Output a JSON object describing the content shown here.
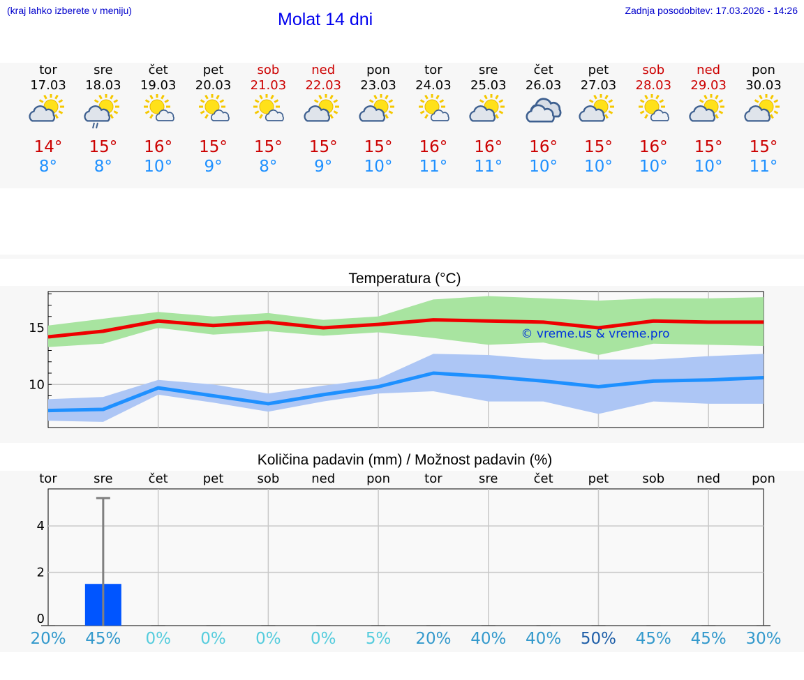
{
  "header": {
    "note": "(kraj lahko izberete v meniju)",
    "title": "Molat 14 dni",
    "updated_label": "Zadnja posodobitev:",
    "updated_value": "17.03.2026 - 14:26"
  },
  "days": [
    {
      "name": "tor",
      "date": "17.03",
      "weekend": false,
      "icon": "sun-cloud-icon",
      "tmax": "14°",
      "tmin": "8°"
    },
    {
      "name": "sre",
      "date": "18.03",
      "weekend": false,
      "icon": "sun-cloud-rain-icon",
      "tmax": "15°",
      "tmin": "8°"
    },
    {
      "name": "čet",
      "date": "19.03",
      "weekend": false,
      "icon": "sun-small-cloud-icon",
      "tmax": "16°",
      "tmin": "10°"
    },
    {
      "name": "pet",
      "date": "20.03",
      "weekend": false,
      "icon": "sun-small-cloud-icon",
      "tmax": "15°",
      "tmin": "9°"
    },
    {
      "name": "sob",
      "date": "21.03",
      "weekend": true,
      "icon": "sun-small-cloud-icon",
      "tmax": "15°",
      "tmin": "8°"
    },
    {
      "name": "ned",
      "date": "22.03",
      "weekend": true,
      "icon": "sun-cloud-icon",
      "tmax": "15°",
      "tmin": "9°"
    },
    {
      "name": "pon",
      "date": "23.03",
      "weekend": false,
      "icon": "sun-cloud-icon",
      "tmax": "15°",
      "tmin": "10°"
    },
    {
      "name": "tor",
      "date": "24.03",
      "weekend": false,
      "icon": "sun-small-cloud-icon",
      "tmax": "16°",
      "tmin": "11°"
    },
    {
      "name": "sre",
      "date": "25.03",
      "weekend": false,
      "icon": "sun-cloud-icon",
      "tmax": "16°",
      "tmin": "11°"
    },
    {
      "name": "čet",
      "date": "26.03",
      "weekend": false,
      "icon": "overcast-icon",
      "tmax": "16°",
      "tmin": "10°"
    },
    {
      "name": "pet",
      "date": "27.03",
      "weekend": false,
      "icon": "sun-cloud-icon",
      "tmax": "15°",
      "tmin": "10°"
    },
    {
      "name": "sob",
      "date": "28.03",
      "weekend": true,
      "icon": "sun-small-cloud-icon",
      "tmax": "16°",
      "tmin": "10°"
    },
    {
      "name": "ned",
      "date": "29.03",
      "weekend": true,
      "icon": "sun-cloud-icon",
      "tmax": "15°",
      "tmin": "10°"
    },
    {
      "name": "pon",
      "date": "30.03",
      "weekend": false,
      "icon": "sun-cloud-icon",
      "tmax": "15°",
      "tmin": "11°"
    }
  ],
  "colors": {
    "max_line": "#ee0000",
    "max_band": "#a8e4a0",
    "min_line": "#1e90ff",
    "min_band": "#adc6f5",
    "bar": "#0055ff",
    "whisker": "#808080",
    "weekend": "#cc0000"
  },
  "chart_data": [
    {
      "type": "line",
      "title": "Temperatura (°C)",
      "watermark": "© vreme.us & vreme.pro",
      "ylim": [
        6.2,
        18.2
      ],
      "yticks": [
        10,
        15
      ],
      "series": [
        {
          "name": "max",
          "values": [
            14.2,
            14.7,
            15.6,
            15.2,
            15.5,
            15.0,
            15.3,
            15.7,
            15.6,
            15.5,
            15.0,
            15.6,
            15.5,
            15.5
          ],
          "band_low": [
            13.3,
            13.6,
            15.0,
            14.4,
            14.7,
            14.3,
            14.6,
            14.1,
            13.5,
            13.7,
            12.6,
            13.6,
            13.5,
            13.4
          ],
          "band_high": [
            15.2,
            15.8,
            16.4,
            16.0,
            16.3,
            15.7,
            16.0,
            17.5,
            17.8,
            17.6,
            17.4,
            17.6,
            17.6,
            17.7
          ]
        },
        {
          "name": "min",
          "values": [
            7.7,
            7.8,
            9.7,
            9.0,
            8.3,
            9.1,
            9.8,
            11.0,
            10.7,
            10.3,
            9.8,
            10.3,
            10.4,
            10.6
          ],
          "band_low": [
            6.8,
            6.7,
            9.1,
            8.4,
            7.6,
            8.5,
            9.2,
            9.4,
            8.5,
            8.5,
            7.4,
            8.5,
            8.3,
            8.3
          ],
          "band_high": [
            8.7,
            8.9,
            10.4,
            10.0,
            9.2,
            9.9,
            10.5,
            12.7,
            12.6,
            12.2,
            12.2,
            12.2,
            12.5,
            12.7
          ]
        }
      ]
    },
    {
      "type": "bar",
      "title": "Količina padavin (mm) / Možnost padavin (%)",
      "categories": [
        "tor",
        "sre",
        "čet",
        "pet",
        "sob",
        "ned",
        "pon",
        "tor",
        "sre",
        "čet",
        "pet",
        "sob",
        "ned",
        "pon"
      ],
      "values": [
        0,
        1.5,
        0,
        0,
        0,
        0,
        0,
        0,
        0,
        0,
        0,
        0,
        0,
        0
      ],
      "whisker_high": [
        0,
        5.2,
        0,
        0,
        0,
        0,
        0,
        0,
        0,
        0,
        0,
        0,
        0,
        0
      ],
      "ylim": [
        -0.3,
        5.6
      ],
      "yticks": [
        0,
        2,
        4
      ],
      "probability": [
        "20%",
        "45%",
        "0%",
        "0%",
        "0%",
        "0%",
        "5%",
        "20%",
        "40%",
        "40%",
        "50%",
        "45%",
        "45%",
        "30%"
      ],
      "probability_colors": [
        "#3399cc",
        "#3399cc",
        "#55ccdd",
        "#55ccdd",
        "#55ccdd",
        "#55ccdd",
        "#55ccdd",
        "#3399cc",
        "#3399cc",
        "#3399cc",
        "#1f5fa8",
        "#3399cc",
        "#3399cc",
        "#3399cc"
      ]
    }
  ]
}
